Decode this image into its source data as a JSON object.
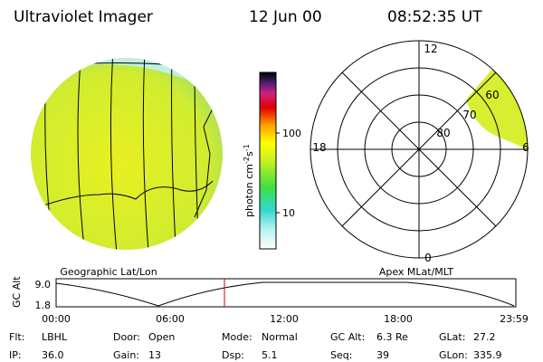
{
  "header": {
    "title": "Ultraviolet Imager",
    "date": "12 Jun 00",
    "time": "08:52:35 UT"
  },
  "colorbar": {
    "label": "photon cm",
    "exp1": "-2",
    "unit2": "s",
    "exp2": "-1",
    "ticks": [
      "100",
      "10"
    ]
  },
  "polar": {
    "mlt_labels": [
      "12",
      "18",
      "6",
      "0"
    ],
    "mlat_labels": [
      "80",
      "70",
      "60"
    ]
  },
  "panels": {
    "left": "Geographic Lat/Lon",
    "right": "Apex MLat/MLT"
  },
  "timeline": {
    "axis_label": "GC Alt",
    "yticks": [
      "9.0",
      "1.8"
    ],
    "xticks": [
      "00:00",
      "06:00",
      "12:00",
      "18:00",
      "23:59"
    ]
  },
  "footer": {
    "rows": [
      [
        [
          "Flt:",
          "LBHL"
        ],
        [
          "Door:",
          "Open"
        ],
        [
          "Mode:",
          "Normal"
        ],
        [
          "GC Alt:",
          "6.3 Re"
        ],
        [
          "GLat:",
          "27.2"
        ]
      ],
      [
        [
          "IP:",
          "36.0"
        ],
        [
          "Gain:",
          "13"
        ],
        [
          "Dsp:",
          "5.1"
        ],
        [
          "Seq:",
          "39"
        ],
        [
          "GLon:",
          "335.9"
        ]
      ]
    ]
  }
}
